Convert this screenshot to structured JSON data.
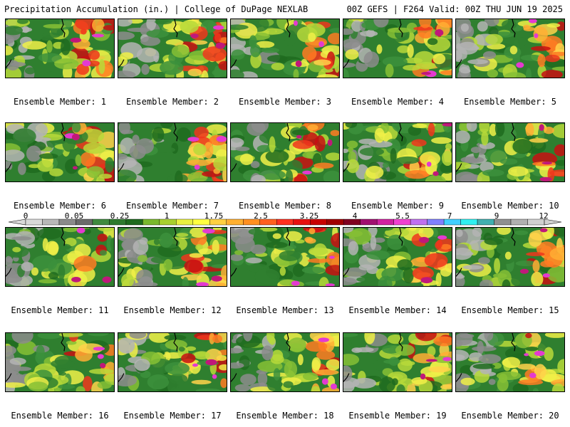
{
  "header": {
    "left_title": "Precipitation Accumulation (in.) | College of DuPage NEXLAB",
    "right_title": "00Z GEFS | F264 Valid: 00Z THU JUN 19 2025"
  },
  "panels": [
    {
      "label": "Ensemble Member: 1"
    },
    {
      "label": "Ensemble Member: 2"
    },
    {
      "label": "Ensemble Member: 3"
    },
    {
      "label": "Ensemble Member: 4"
    },
    {
      "label": "Ensemble Member: 5"
    },
    {
      "label": "Ensemble Member: 6"
    },
    {
      "label": "Ensemble Member: 7"
    },
    {
      "label": "Ensemble Member: 8"
    },
    {
      "label": "Ensemble Member: 9"
    },
    {
      "label": "Ensemble Member: 10"
    },
    {
      "label": "Ensemble Member: 11"
    },
    {
      "label": "Ensemble Member: 12"
    },
    {
      "label": "Ensemble Member: 13"
    },
    {
      "label": "Ensemble Member: 14"
    },
    {
      "label": "Ensemble Member: 15"
    },
    {
      "label": "Ensemble Member: 16"
    },
    {
      "label": "Ensemble Member: 17"
    },
    {
      "label": "Ensemble Member: 18"
    },
    {
      "label": "Ensemble Member: 19"
    },
    {
      "label": "Ensemble Member: 20"
    }
  ],
  "colorbar": {
    "labels": [
      "0",
      "0.05",
      "0.25",
      "1",
      "1.75",
      "2.5",
      "3.25",
      "4",
      "5.5",
      "7",
      "9",
      "12"
    ],
    "colors": [
      "#d8d8d8",
      "#b8b8b8",
      "#8a8a8a",
      "#6a6a6a",
      "#3f8a3f",
      "#2e7a2e",
      "#1e6a1e",
      "#7ab82e",
      "#a8d02e",
      "#e8f040",
      "#ffff40",
      "#ffd040",
      "#ffb030",
      "#ff9020",
      "#ff6020",
      "#ff3020",
      "#e81010",
      "#c80000",
      "#a00000",
      "#800020",
      "#a01070",
      "#d020a0",
      "#f040d0",
      "#c070f0",
      "#8080ff",
      "#40d0ff",
      "#30f0f0",
      "#40b0b0",
      "#909090",
      "#b0b0b0",
      "#d0d0d0"
    ]
  }
}
